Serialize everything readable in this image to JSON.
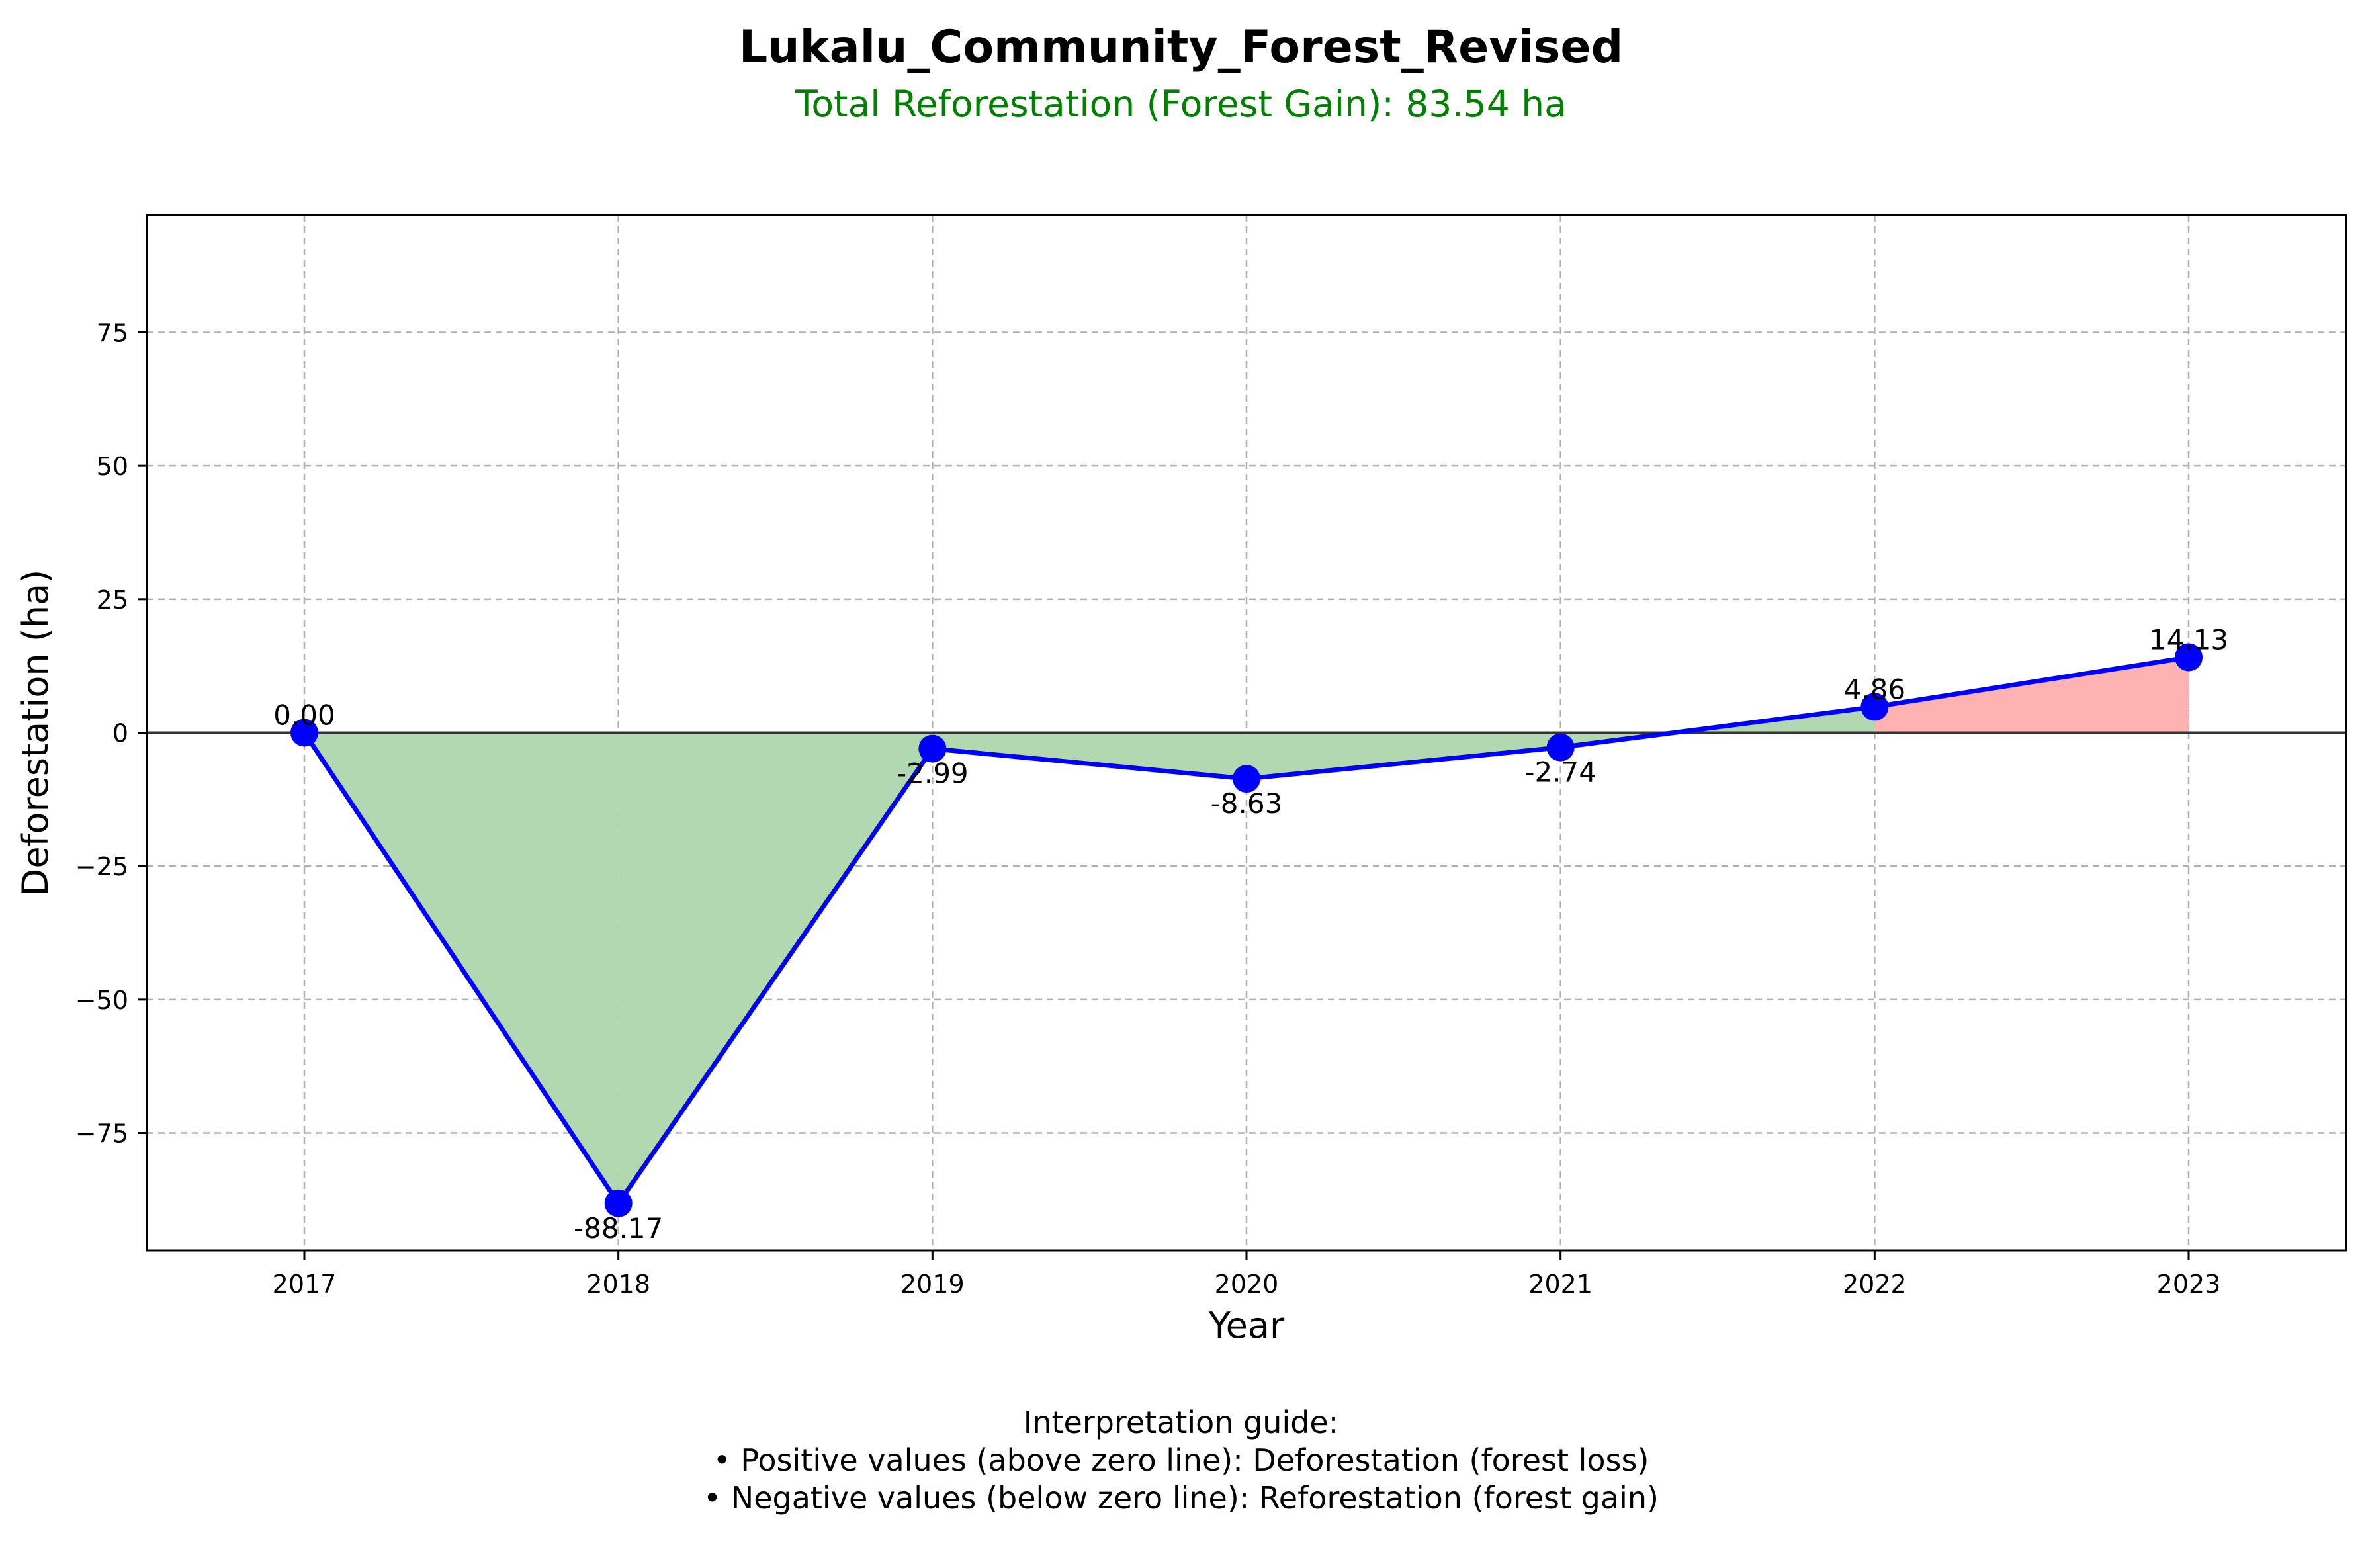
{
  "title": "Lukalu_Community_Forest_Revised",
  "subtitle": "Total Reforestation (Forest Gain): 83.54 ha",
  "guide": {
    "heading": "Interpretation guide:",
    "lines": [
      "• Positive values (above zero line): Deforestation (forest loss)",
      "• Negative values (below zero line): Reforestation (forest gain)"
    ]
  },
  "chart_data": {
    "type": "line",
    "title": "Lukalu_Community_Forest_Revised",
    "subtitle": "Total Reforestation (Forest Gain): 83.54 ha",
    "xlabel": "Year",
    "ylabel": "Deforestation (ha)",
    "categories": [
      "2017",
      "2018",
      "2019",
      "2020",
      "2021",
      "2022",
      "2023"
    ],
    "values": [
      0.0,
      -88.17,
      -2.99,
      -8.63,
      -2.74,
      4.86,
      14.13
    ],
    "data_labels": [
      "0.00",
      "-88.17",
      "-2.99",
      "-8.63",
      "-2.74",
      "4.86",
      "14.13"
    ],
    "ylim": [
      -97,
      97
    ],
    "yticks": [
      -75,
      -50,
      -25,
      0,
      25,
      50,
      75
    ],
    "ytick_labels": [
      "−75",
      "−50",
      "−25",
      "0",
      "25",
      "50",
      "75"
    ],
    "grid": true,
    "colors": {
      "line": "#0000ff",
      "marker": "#0000ff",
      "gain_fill": "#b2d8b2",
      "loss_fill": "#ffb2b2",
      "zero_line": "#333333",
      "subtitle": "#008000"
    }
  }
}
